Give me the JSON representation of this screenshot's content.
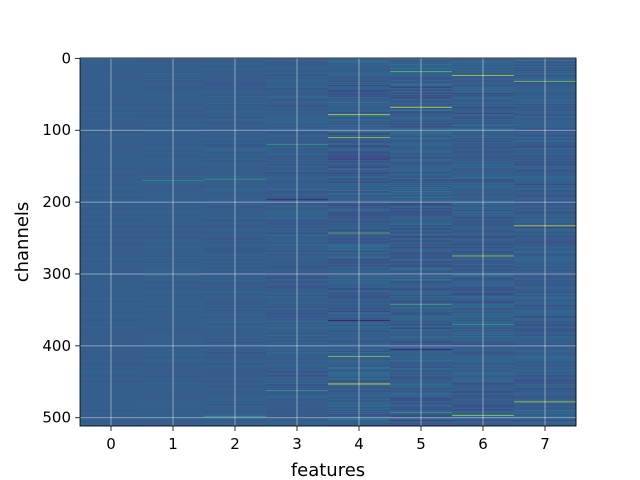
{
  "chart_data": {
    "type": "heatmap",
    "colormap": "viridis",
    "xlabel": "features",
    "ylabel": "channels",
    "x_categories": [
      "0",
      "1",
      "2",
      "3",
      "4",
      "5",
      "6",
      "7"
    ],
    "y_ticks": [
      0,
      100,
      200,
      300,
      400,
      500
    ],
    "n_channels": 512,
    "n_features": 8,
    "color_range": [
      0,
      1
    ],
    "typical_value": 0.3,
    "grid": true,
    "feature_spread": [
      0.012,
      0.018,
      0.028,
      0.045,
      0.075,
      0.085,
      0.07,
      0.065
    ],
    "highlights": [
      {
        "feature": 1,
        "channel": 170,
        "value": 0.55
      },
      {
        "feature": 2,
        "channel": 168,
        "value": 0.6
      },
      {
        "feature": 2,
        "channel": 498,
        "value": 0.62
      },
      {
        "feature": 3,
        "channel": 120,
        "value": 0.58
      },
      {
        "feature": 3,
        "channel": 196,
        "value": 0.05
      },
      {
        "feature": 3,
        "channel": 462,
        "value": 0.6
      },
      {
        "feature": 4,
        "channel": 78,
        "value": 0.9
      },
      {
        "feature": 4,
        "channel": 110,
        "value": 0.85
      },
      {
        "feature": 4,
        "channel": 243,
        "value": 0.75
      },
      {
        "feature": 4,
        "channel": 365,
        "value": 0.02
      },
      {
        "feature": 4,
        "channel": 415,
        "value": 0.8
      },
      {
        "feature": 4,
        "channel": 453,
        "value": 1.0
      },
      {
        "feature": 5,
        "channel": 18,
        "value": 0.75
      },
      {
        "feature": 5,
        "channel": 68,
        "value": 0.95
      },
      {
        "feature": 5,
        "channel": 342,
        "value": 0.7
      },
      {
        "feature": 5,
        "channel": 405,
        "value": 0.05
      },
      {
        "feature": 5,
        "channel": 493,
        "value": 0.65
      },
      {
        "feature": 6,
        "channel": 24,
        "value": 0.9
      },
      {
        "feature": 6,
        "channel": 275,
        "value": 0.85
      },
      {
        "feature": 6,
        "channel": 370,
        "value": 0.6
      },
      {
        "feature": 6,
        "channel": 497,
        "value": 0.85
      },
      {
        "feature": 7,
        "channel": 32,
        "value": 0.8
      },
      {
        "feature": 7,
        "channel": 233,
        "value": 0.95
      },
      {
        "feature": 7,
        "channel": 478,
        "value": 0.9
      }
    ]
  }
}
